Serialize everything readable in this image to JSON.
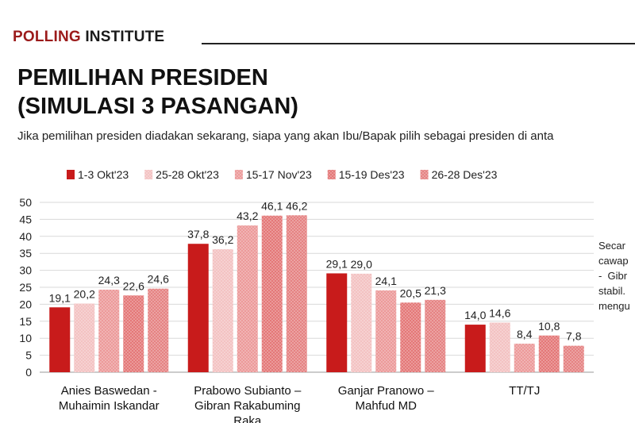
{
  "header": {
    "brand_part1": "POLLING",
    "brand_part2": "INSTITUTE",
    "title_line1": "PEMILIHAN PRESIDEN",
    "title_line2": "(SIMULASI 3 PASANGAN)",
    "question": "Jika pemilihan presiden diadakan sekarang, siapa yang akan Ibu/Bapak pilih sebagai presiden di anta",
    "side_note": "Secar\ncawap\n-  Gibr\nstabil.\nmengu"
  },
  "chart_data": {
    "type": "bar",
    "categories": [
      [
        "Anies Baswedan -",
        "Muhaimin Iskandar"
      ],
      [
        "Prabowo Subianto –",
        "Gibran Rakabuming",
        "Raka"
      ],
      [
        "Ganjar Pranowo –",
        "Mahfud MD"
      ],
      [
        "TT/TJ"
      ]
    ],
    "series": [
      {
        "name": "1-3 Okt'23",
        "values": [
          19.1,
          37.8,
          29.1,
          14.0
        ],
        "labels": [
          "19,1",
          "37,8",
          "29,1",
          "14,0"
        ],
        "color": "#c81b1b",
        "pattern": "solid"
      },
      {
        "name": "25-28 Okt'23",
        "values": [
          20.2,
          36.2,
          29.0,
          14.6
        ],
        "labels": [
          "20,2",
          "36,2",
          "29,0",
          "14,6"
        ],
        "color": "#f3c2c2",
        "pattern": "dots"
      },
      {
        "name": "15-17 Nov'23",
        "values": [
          24.3,
          43.2,
          24.1,
          8.4
        ],
        "labels": [
          "24,3",
          "43,2",
          "24,1",
          "8,4"
        ],
        "color": "#ec9a9a",
        "pattern": "dots"
      },
      {
        "name": "15-19 Des'23",
        "values": [
          22.6,
          46.1,
          20.5,
          10.8
        ],
        "labels": [
          "22,6",
          "46,1",
          "20,5",
          "10,8"
        ],
        "color": "#e47878",
        "pattern": "dots"
      },
      {
        "name": "26-28 Des'23",
        "values": [
          24.6,
          46.2,
          21.3,
          7.8
        ],
        "labels": [
          "24,6",
          "46,2",
          "21,3",
          "7,8"
        ],
        "color": "#e58383",
        "pattern": "dots"
      }
    ],
    "yticks": [
      0,
      5,
      10,
      15,
      20,
      25,
      30,
      35,
      40,
      45,
      50
    ],
    "ylim": [
      0,
      50
    ],
    "grid": true,
    "legend": "top"
  }
}
